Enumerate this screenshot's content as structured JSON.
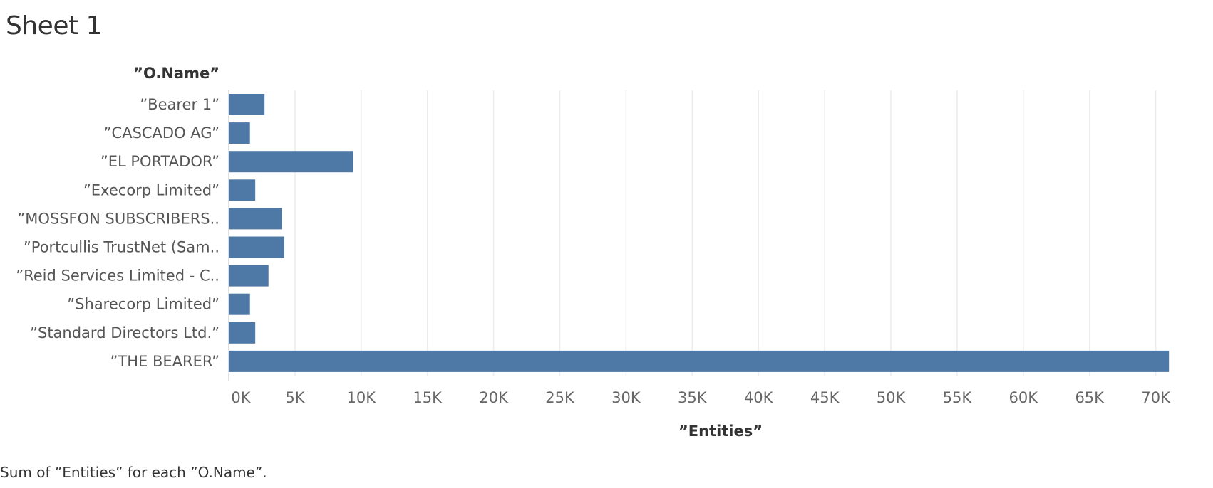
{
  "sheet": {
    "title": "Sheet 1",
    "caption": "Sum of ”Entities” for each ”O.Name”."
  },
  "colors": {
    "bar": "#4e79a7",
    "grid": "#ececec",
    "text": "#333333"
  },
  "chart_data": {
    "type": "bar",
    "orientation": "horizontal",
    "row_header": "”O.Name”",
    "xlabel": "”Entities”",
    "categories": [
      "”Bearer 1”",
      "”CASCADO AG”",
      "”EL PORTADOR”",
      "”Execorp Limited”",
      "”MOSSFON SUBSCRIBERS..",
      "”Portcullis TrustNet (Sam..",
      "”Reid Services Limited - C..",
      "”Sharecorp Limited”",
      "”Standard Directors Ltd.”",
      "”THE BEARER”"
    ],
    "values": [
      2700,
      1600,
      9400,
      2000,
      4000,
      4200,
      3000,
      1600,
      2000,
      71000
    ],
    "xlim": [
      0,
      75000
    ],
    "xticks": [
      0,
      5000,
      10000,
      15000,
      20000,
      25000,
      30000,
      35000,
      40000,
      45000,
      50000,
      55000,
      60000,
      65000,
      70000
    ],
    "xtick_labels": [
      "0K",
      "5K",
      "10K",
      "15K",
      "20K",
      "25K",
      "30K",
      "35K",
      "40K",
      "45K",
      "50K",
      "55K",
      "60K",
      "65K",
      "70K"
    ],
    "grid": true,
    "legend": "none"
  }
}
